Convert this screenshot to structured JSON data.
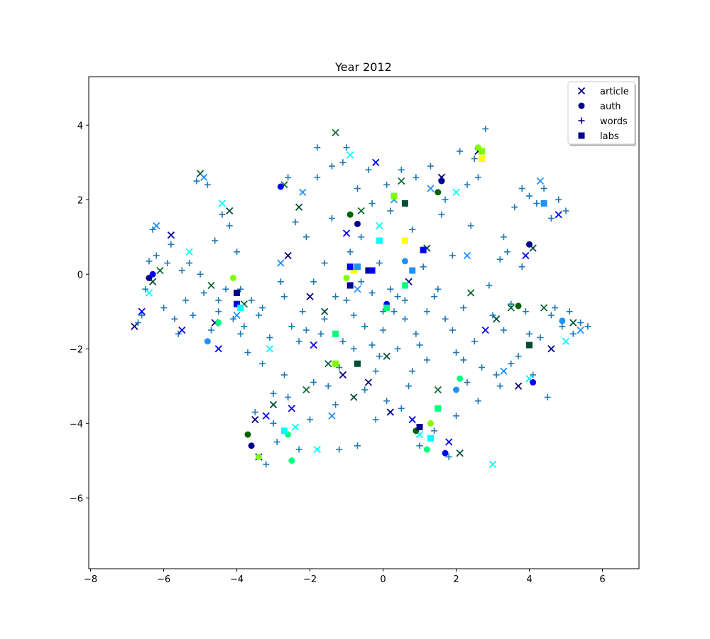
{
  "chart_data": {
    "type": "scatter",
    "title": "Year 2012",
    "xlabel": "",
    "ylabel": "",
    "xlim": [
      -8.05,
      7.0
    ],
    "ylim": [
      -7.9,
      5.3
    ],
    "x_ticks": [
      -8,
      -6,
      -4,
      -2,
      0,
      2,
      4,
      6
    ],
    "y_ticks": [
      -6,
      -4,
      -2,
      0,
      2,
      4
    ],
    "x_tick_labels": [
      "−8",
      "−6",
      "−4",
      "−2",
      "0",
      "2",
      "4",
      "6"
    ],
    "y_tick_labels": [
      "−6",
      "−4",
      "−2",
      "0",
      "2",
      "4"
    ],
    "grid": false,
    "legend": {
      "placement": "top-right",
      "entries": [
        "article",
        "auth",
        "words",
        "labs"
      ]
    },
    "series": [
      {
        "name": "article",
        "marker": "x",
        "colors": [
          "#00008b",
          "#0000ff",
          "#00ffff",
          "#004d33",
          "#1e90ff",
          "#0b6b2e"
        ],
        "points": [
          [
            -6.8,
            -1.4
          ],
          [
            -6.6,
            -1.0
          ],
          [
            -6.4,
            -0.5
          ],
          [
            -6.3,
            -0.2
          ],
          [
            -6.2,
            1.3
          ],
          [
            -6.1,
            0.1
          ],
          [
            -5.8,
            1.05
          ],
          [
            -5.5,
            -1.5
          ],
          [
            -5.3,
            0.6
          ],
          [
            -5.0,
            2.7
          ],
          [
            -4.9,
            2.6
          ],
          [
            -4.7,
            -0.3
          ],
          [
            -4.6,
            -1.3
          ],
          [
            -4.5,
            -2.0
          ],
          [
            -4.4,
            1.9
          ],
          [
            -4.2,
            1.7
          ],
          [
            -4.0,
            -1.1
          ],
          [
            -3.8,
            -0.8
          ],
          [
            -3.5,
            -3.9
          ],
          [
            -3.2,
            -3.8
          ],
          [
            -3.1,
            -2.0
          ],
          [
            -3.0,
            -3.5
          ],
          [
            -2.8,
            0.3
          ],
          [
            -2.7,
            2.4
          ],
          [
            -2.6,
            0.5
          ],
          [
            -2.5,
            -3.6
          ],
          [
            -2.4,
            -4.1
          ],
          [
            -2.3,
            1.8
          ],
          [
            -2.2,
            2.2
          ],
          [
            -2.1,
            -3.1
          ],
          [
            -2.0,
            -0.6
          ],
          [
            -1.9,
            -1.9
          ],
          [
            -1.8,
            -4.7
          ],
          [
            -1.6,
            -1.0
          ],
          [
            -1.4,
            -3.8
          ],
          [
            -1.3,
            3.8
          ],
          [
            -1.1,
            -2.7
          ],
          [
            -1.0,
            1.1
          ],
          [
            -0.9,
            3.2
          ],
          [
            -0.8,
            -3.3
          ],
          [
            -0.7,
            -0.4
          ],
          [
            -0.6,
            1.7
          ],
          [
            -0.4,
            -2.9
          ],
          [
            -0.2,
            3.0
          ],
          [
            -0.1,
            1.3
          ],
          [
            0.1,
            -2.2
          ],
          [
            0.3,
            2.0
          ],
          [
            0.5,
            2.5
          ],
          [
            0.7,
            -0.2
          ],
          [
            0.8,
            -3.9
          ],
          [
            1.0,
            -4.3
          ],
          [
            1.2,
            0.7
          ],
          [
            1.3,
            2.3
          ],
          [
            1.5,
            -3.1
          ],
          [
            1.6,
            2.6
          ],
          [
            1.8,
            -4.5
          ],
          [
            2.0,
            2.2
          ],
          [
            2.1,
            -4.8
          ],
          [
            2.3,
            0.5
          ],
          [
            2.4,
            -0.5
          ],
          [
            2.6,
            3.3
          ],
          [
            2.8,
            -1.5
          ],
          [
            3.0,
            -5.1
          ],
          [
            3.1,
            -1.2
          ],
          [
            3.3,
            -2.6
          ],
          [
            3.5,
            -0.9
          ],
          [
            3.7,
            -3.0
          ],
          [
            3.9,
            0.5
          ],
          [
            4.0,
            -2.8
          ],
          [
            4.1,
            0.7
          ],
          [
            4.3,
            2.5
          ],
          [
            4.4,
            -0.9
          ],
          [
            4.6,
            -2.0
          ],
          [
            4.8,
            1.6
          ],
          [
            5.0,
            -1.8
          ],
          [
            5.2,
            -1.3
          ],
          [
            5.4,
            -1.5
          ],
          [
            -1.5,
            -2.4
          ],
          [
            0.2,
            -3.7
          ],
          [
            -3.4,
            -4.9
          ]
        ]
      },
      {
        "name": "auth",
        "marker": "o",
        "colors": [
          "#00008b",
          "#0000ff",
          "#1e90ff",
          "#00ff7f",
          "#7fff00",
          "#006400"
        ],
        "points": [
          [
            -6.4,
            -0.1
          ],
          [
            -6.3,
            0.0
          ],
          [
            -4.8,
            -1.8
          ],
          [
            -4.5,
            -1.3
          ],
          [
            -4.1,
            -0.1
          ],
          [
            -3.7,
            -4.3
          ],
          [
            -3.6,
            -4.6
          ],
          [
            -2.8,
            2.35
          ],
          [
            -2.7,
            -4.2
          ],
          [
            -2.6,
            -4.3
          ],
          [
            -1.0,
            -0.1
          ],
          [
            -0.9,
            1.6
          ],
          [
            -0.7,
            1.35
          ],
          [
            0.1,
            -0.8
          ],
          [
            0.6,
            0.35
          ],
          [
            1.2,
            -4.7
          ],
          [
            1.3,
            -4.0
          ],
          [
            1.5,
            2.2
          ],
          [
            1.6,
            2.5
          ],
          [
            1.7,
            -4.8
          ],
          [
            2.0,
            -3.1
          ],
          [
            2.1,
            -2.8
          ],
          [
            2.6,
            3.4
          ],
          [
            3.7,
            -0.85
          ],
          [
            4.0,
            0.8
          ],
          [
            4.1,
            -2.9
          ],
          [
            4.9,
            -1.25
          ],
          [
            -2.5,
            -5.0
          ],
          [
            -3.4,
            -4.9
          ],
          [
            0.9,
            -4.2
          ]
        ]
      },
      {
        "name": "words",
        "marker": "+",
        "colors": [
          "#1f77b4"
        ],
        "points": [
          [
            -6.7,
            -1.3
          ],
          [
            -6.6,
            -1.1
          ],
          [
            -6.5,
            -0.4
          ],
          [
            -6.4,
            0.35
          ],
          [
            -6.3,
            1.2
          ],
          [
            -6.2,
            0.5
          ],
          [
            -6.0,
            -0.9
          ],
          [
            -5.9,
            0.3
          ],
          [
            -5.8,
            0.8
          ],
          [
            -5.7,
            -1.2
          ],
          [
            -5.6,
            -1.6
          ],
          [
            -5.5,
            0.1
          ],
          [
            -5.4,
            -0.7
          ],
          [
            -5.3,
            0.3
          ],
          [
            -5.2,
            -1.1
          ],
          [
            -5.1,
            2.5
          ],
          [
            -5.0,
            0.0
          ],
          [
            -4.9,
            -0.5
          ],
          [
            -4.8,
            2.4
          ],
          [
            -4.7,
            -1.5
          ],
          [
            -4.6,
            0.9
          ],
          [
            -4.5,
            -0.7
          ],
          [
            -4.4,
            1.6
          ],
          [
            -4.3,
            -0.4
          ],
          [
            -4.2,
            1.3
          ],
          [
            -4.1,
            -1.2
          ],
          [
            -4.0,
            0.6
          ],
          [
            -3.9,
            -0.4
          ],
          [
            -3.8,
            -1.4
          ],
          [
            -3.7,
            -2.1
          ],
          [
            -3.6,
            -0.7
          ],
          [
            -3.5,
            -3.7
          ],
          [
            -3.4,
            -1.1
          ],
          [
            -3.3,
            -2.4
          ],
          [
            -3.2,
            -5.1
          ],
          [
            -3.1,
            -1.7
          ],
          [
            -3.0,
            -3.2
          ],
          [
            -2.9,
            -4.5
          ],
          [
            -2.8,
            -0.2
          ],
          [
            -2.7,
            -2.7
          ],
          [
            -2.6,
            2.6
          ],
          [
            -2.5,
            -1.4
          ],
          [
            -2.4,
            1.4
          ],
          [
            -2.3,
            -4.7
          ],
          [
            -2.2,
            -1.0
          ],
          [
            -2.1,
            1.0
          ],
          [
            -2.0,
            -3.9
          ],
          [
            -1.9,
            -0.2
          ],
          [
            -1.8,
            2.6
          ],
          [
            -1.7,
            -1.6
          ],
          [
            -1.6,
            0.3
          ],
          [
            -1.5,
            -3.0
          ],
          [
            -1.4,
            1.5
          ],
          [
            -1.3,
            -0.6
          ],
          [
            -1.2,
            -4.7
          ],
          [
            -1.1,
            -1.8
          ],
          [
            -1.0,
            3.4
          ],
          [
            -0.9,
            0.6
          ],
          [
            -0.8,
            -2.0
          ],
          [
            -0.7,
            -4.6
          ],
          [
            -0.6,
            1.0
          ],
          [
            -0.5,
            -1.4
          ],
          [
            -0.4,
            2.8
          ],
          [
            -0.3,
            -0.5
          ],
          [
            -0.2,
            -2.6
          ],
          [
            -0.1,
            0.3
          ],
          [
            0.0,
            -1.5
          ],
          [
            0.1,
            -3.4
          ],
          [
            0.2,
            1.7
          ],
          [
            0.3,
            -1.0
          ],
          [
            0.4,
            -2.0
          ],
          [
            0.5,
            2.8
          ],
          [
            0.6,
            -0.7
          ],
          [
            0.7,
            -3.0
          ],
          [
            0.8,
            1.2
          ],
          [
            0.9,
            -1.6
          ],
          [
            1.0,
            -4.6
          ],
          [
            1.1,
            0.2
          ],
          [
            1.2,
            -2.3
          ],
          [
            1.3,
            2.9
          ],
          [
            1.4,
            -0.6
          ],
          [
            1.5,
            -3.6
          ],
          [
            1.6,
            1.6
          ],
          [
            1.7,
            -1.2
          ],
          [
            1.8,
            -4.9
          ],
          [
            1.9,
            0.5
          ],
          [
            2.0,
            -2.1
          ],
          [
            2.1,
            3.3
          ],
          [
            2.2,
            -0.9
          ],
          [
            2.3,
            -2.9
          ],
          [
            2.4,
            1.3
          ],
          [
            2.5,
            -1.8
          ],
          [
            2.6,
            2.6
          ],
          [
            2.7,
            -2.5
          ],
          [
            2.8,
            3.9
          ],
          [
            2.9,
            -0.3
          ],
          [
            3.0,
            -1.1
          ],
          [
            3.1,
            -2.7
          ],
          [
            3.2,
            0.4
          ],
          [
            3.3,
            -1.5
          ],
          [
            3.4,
            0.6
          ],
          [
            3.5,
            -0.8
          ],
          [
            3.6,
            1.8
          ],
          [
            3.7,
            -2.2
          ],
          [
            3.8,
            2.3
          ],
          [
            3.9,
            -1.0
          ],
          [
            4.0,
            2.1
          ],
          [
            4.1,
            -2.7
          ],
          [
            4.2,
            1.9
          ],
          [
            4.3,
            -1.7
          ],
          [
            4.4,
            2.3
          ],
          [
            4.5,
            -3.3
          ],
          [
            4.6,
            1.5
          ],
          [
            4.7,
            -0.9
          ],
          [
            4.8,
            2.0
          ],
          [
            4.9,
            -1.4
          ],
          [
            5.0,
            1.7
          ],
          [
            5.1,
            -1.0
          ],
          [
            5.2,
            -1.6
          ],
          [
            5.4,
            -1.3
          ],
          [
            5.6,
            -1.4
          ],
          [
            -0.8,
            -1.1
          ],
          [
            -0.3,
            -1.9
          ],
          [
            0.2,
            -0.4
          ],
          [
            0.6,
            -1.2
          ],
          [
            1.0,
            -1.9
          ],
          [
            -1.2,
            -2.5
          ],
          [
            -0.5,
            -3.1
          ],
          [
            0.8,
            -2.6
          ],
          [
            1.5,
            -0.4
          ],
          [
            -2.3,
            -1.8
          ],
          [
            -1.6,
            -1.2
          ],
          [
            -0.1,
            -2.2
          ],
          [
            1.9,
            -1.5
          ],
          [
            2.2,
            -2.3
          ],
          [
            -1.0,
            -0.7
          ],
          [
            0.4,
            -0.6
          ],
          [
            1.2,
            -1.0
          ],
          [
            -0.6,
            -0.2
          ],
          [
            0.0,
            -1.0
          ],
          [
            -1.4,
            2.9
          ],
          [
            -0.7,
            2.3
          ],
          [
            -0.3,
            1.9
          ],
          [
            0.1,
            2.4
          ],
          [
            0.9,
            2.6
          ],
          [
            1.7,
            2.0
          ],
          [
            2.3,
            2.4
          ],
          [
            2.5,
            3.1
          ],
          [
            -1.8,
            3.4
          ],
          [
            -1.1,
            3.0
          ],
          [
            -2.6,
            -3.3
          ],
          [
            -1.9,
            -2.9
          ],
          [
            -1.3,
            -3.5
          ],
          [
            -0.2,
            -3.9
          ],
          [
            0.5,
            -3.6
          ],
          [
            1.4,
            -4.2
          ],
          [
            2.0,
            -3.8
          ],
          [
            2.6,
            -3.4
          ],
          [
            3.2,
            -3.0
          ],
          [
            -3.0,
            -4.0
          ],
          [
            -4.5,
            -1.0
          ],
          [
            -3.9,
            -1.6
          ],
          [
            -3.3,
            -0.9
          ],
          [
            -2.7,
            -0.6
          ],
          [
            -2.1,
            -1.5
          ],
          [
            3.5,
            -2.4
          ],
          [
            4.0,
            -1.6
          ],
          [
            4.6,
            -1.1
          ],
          [
            3.8,
            0.2
          ],
          [
            3.3,
            1.0
          ]
        ]
      },
      {
        "name": "labs",
        "marker": "s",
        "colors": [
          "#00008b",
          "#0000ff",
          "#00ffff",
          "#00ff7f",
          "#7fff00",
          "#ffff00",
          "#004d33",
          "#1e90ff"
        ],
        "points": [
          [
            -4.0,
            -0.5
          ],
          [
            -4.0,
            -0.8
          ],
          [
            -2.7,
            -4.2
          ],
          [
            -1.3,
            -1.6
          ],
          [
            -1.3,
            -2.4
          ],
          [
            -0.8,
            0.1
          ],
          [
            -0.7,
            -2.4
          ],
          [
            -0.7,
            0.2
          ],
          [
            -0.4,
            0.1
          ],
          [
            -0.3,
            0.1
          ],
          [
            -0.1,
            0.9
          ],
          [
            0.1,
            -0.9
          ],
          [
            0.3,
            2.1
          ],
          [
            0.6,
            0.9
          ],
          [
            0.6,
            1.9
          ],
          [
            0.8,
            0.1
          ],
          [
            1.0,
            -4.1
          ],
          [
            1.1,
            0.65
          ],
          [
            1.3,
            -4.4
          ],
          [
            1.5,
            -3.6
          ],
          [
            2.7,
            3.3
          ],
          [
            2.7,
            3.1
          ],
          [
            4.0,
            -1.9
          ],
          [
            4.4,
            1.9
          ],
          [
            -0.9,
            -0.3
          ],
          [
            -0.9,
            0.2
          ],
          [
            -3.9,
            -0.9
          ],
          [
            0.6,
            -0.3
          ]
        ]
      }
    ]
  }
}
